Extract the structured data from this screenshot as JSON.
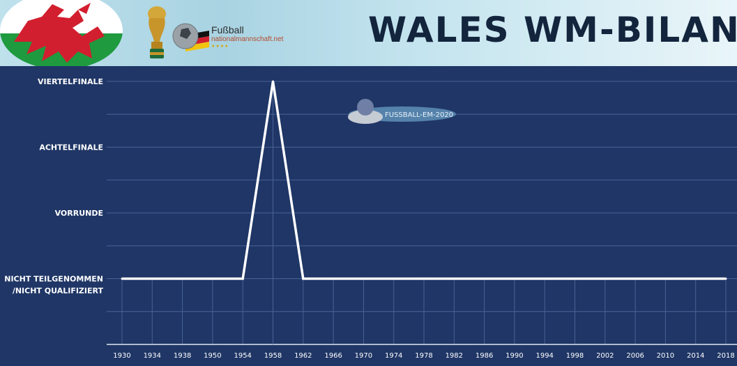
{
  "header": {
    "title": "WALES WM-BILANZ",
    "site_name": "Fußball",
    "site_domain": "nationalmannschaft.net",
    "site_stars": "★★★★",
    "logos": [
      "wales-flag",
      "world-cup-trophy",
      "football-germany-flag"
    ]
  },
  "watermark": {
    "text": "FUSSBALL-EM-2020"
  },
  "colors": {
    "background": "#1f3666",
    "line": "#ffffff",
    "grid": "#4a6296",
    "title": "#13243d"
  },
  "chart_data": {
    "type": "line",
    "title": "WALES WM-BILANZ",
    "xlabel": "",
    "ylabel": "",
    "categories": [
      "1930",
      "1934",
      "1938",
      "1950",
      "1954",
      "1958",
      "1962",
      "1966",
      "1970",
      "1974",
      "1978",
      "1982",
      "1986",
      "1990",
      "1994",
      "1998",
      "2002",
      "2006",
      "2010",
      "2014",
      "2018"
    ],
    "y_levels": [
      {
        "value": 0,
        "label": [
          "NICHT TEILGENOMMEN",
          "/NICHT QUALIFIZIERT"
        ]
      },
      {
        "value": 1,
        "label": [
          "VORRUNDE"
        ]
      },
      {
        "value": 2,
        "label": [
          "ACHTELFINALE"
        ]
      },
      {
        "value": 3,
        "label": [
          "VIERTELFINALE"
        ]
      }
    ],
    "series": [
      {
        "values": [
          0,
          0,
          0,
          0,
          0,
          3,
          0,
          0,
          0,
          0,
          0,
          0,
          0,
          0,
          0,
          0,
          0,
          0,
          0,
          0,
          0
        ]
      }
    ],
    "ylim": [
      -1,
      3
    ],
    "grid": true,
    "legend": "none"
  }
}
